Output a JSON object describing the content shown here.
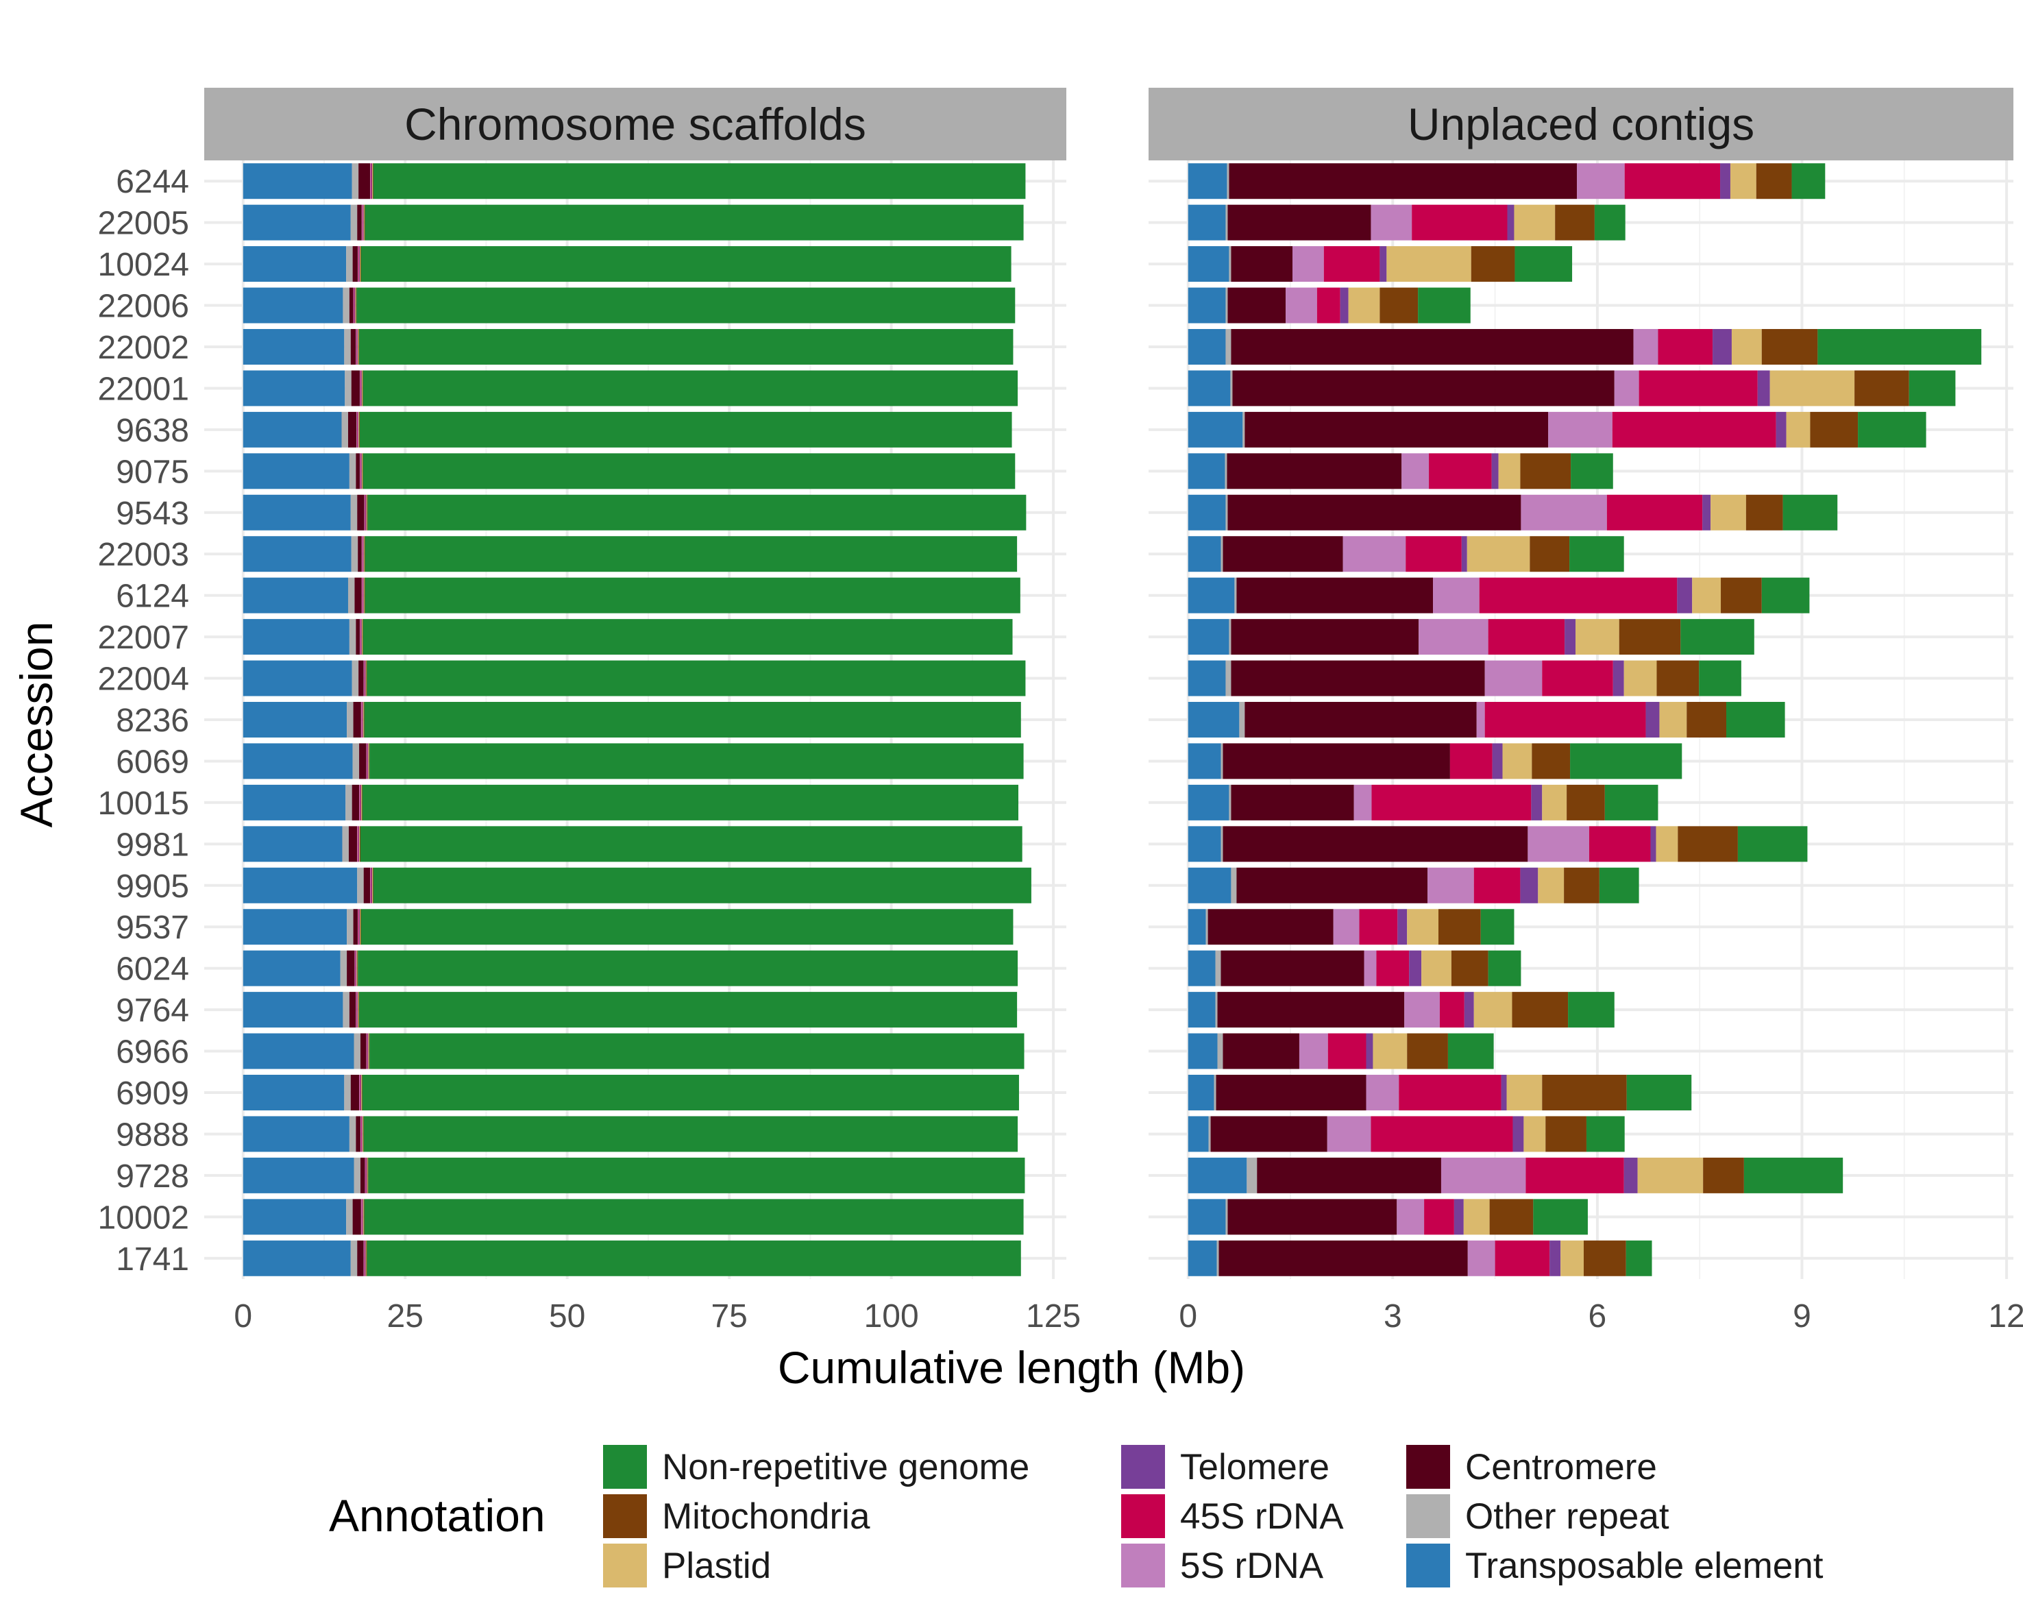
{
  "chart_data": {
    "type": "bar",
    "orientation": "horizontal",
    "stacked": true,
    "ylabel": "Accession",
    "xlabel": "Cumulative length (Mb)",
    "legend": {
      "title": "Annotation",
      "placement": "bottom",
      "columns": [
        [
          "Non-repetitive genome",
          "Mitochondria",
          "Plastid"
        ],
        [
          "Telomere",
          "45S rDNA",
          "5S rDNA"
        ],
        [
          "Centromere",
          "Other repeat",
          "Transposable element"
        ]
      ]
    },
    "colors": {
      "Transposable element": "#2c7bb6",
      "Other repeat": "#b0b0b0",
      "Centromere": "#560019",
      "5S rDNA": "#c07fbd",
      "45S rDNA": "#c6004d",
      "Telomere": "#773f98",
      "Plastid": "#dab96d",
      "Mitochondria": "#7b3f0a",
      "Non-repetitive genome": "#1e8a35"
    },
    "stack_order": [
      "Transposable element",
      "Other repeat",
      "Centromere",
      "5S rDNA",
      "45S rDNA",
      "Telomere",
      "Plastid",
      "Mitochondria",
      "Non-repetitive genome"
    ],
    "categories": [
      "6244",
      "22005",
      "10024",
      "22006",
      "22002",
      "22001",
      "9638",
      "9075",
      "9543",
      "22003",
      "6124",
      "22007",
      "22004",
      "8236",
      "6069",
      "10015",
      "9981",
      "9905",
      "9537",
      "6024",
      "9764",
      "6966",
      "6909",
      "9888",
      "9728",
      "10002",
      "1741"
    ],
    "panels": [
      {
        "title": "Chromosome scaffolds",
        "xlim": [
          -6,
          127
        ],
        "xticks": [
          "0",
          "25",
          "50",
          "75",
          "100",
          "125"
        ],
        "xtick_values": [
          0,
          25,
          50,
          75,
          100,
          125
        ],
        "segments": [
          [
            16.8,
            1.0,
            1.8,
            0.1,
            0.1,
            0.1,
            0.1,
            0.1,
            100.6
          ],
          [
            16.6,
            1.0,
            0.7,
            0.1,
            0.1,
            0.1,
            0.1,
            0.1,
            101.6
          ],
          [
            15.9,
            1.0,
            0.8,
            0.1,
            0.1,
            0.1,
            0.1,
            0.1,
            100.3
          ],
          [
            15.4,
            1.0,
            0.6,
            0.1,
            0.1,
            0.1,
            0.1,
            0.1,
            101.6
          ],
          [
            15.6,
            1.0,
            0.8,
            0.1,
            0.1,
            0.1,
            0.1,
            0.1,
            100.9
          ],
          [
            15.7,
            1.0,
            1.3,
            0.1,
            0.1,
            0.1,
            0.1,
            0.1,
            101.0
          ],
          [
            15.2,
            1.0,
            1.3,
            0.1,
            0.1,
            0.1,
            0.1,
            0.1,
            100.6
          ],
          [
            16.4,
            1.0,
            0.6,
            0.1,
            0.1,
            0.1,
            0.1,
            0.1,
            100.6
          ],
          [
            16.6,
            1.0,
            1.1,
            0.1,
            0.1,
            0.1,
            0.1,
            0.1,
            101.6
          ],
          [
            16.7,
            1.0,
            0.6,
            0.1,
            0.1,
            0.1,
            0.1,
            0.1,
            100.6
          ],
          [
            16.2,
            1.0,
            1.1,
            0.1,
            0.1,
            0.1,
            0.1,
            0.1,
            101.1
          ],
          [
            16.4,
            1.0,
            0.6,
            0.1,
            0.1,
            0.1,
            0.1,
            0.1,
            100.2
          ],
          [
            16.8,
            1.0,
            0.8,
            0.1,
            0.1,
            0.1,
            0.1,
            0.1,
            101.6
          ],
          [
            16.0,
            1.0,
            1.2,
            0.1,
            0.1,
            0.1,
            0.1,
            0.1,
            101.3
          ],
          [
            16.9,
            1.0,
            1.1,
            0.1,
            0.1,
            0.1,
            0.1,
            0.1,
            100.9
          ],
          [
            15.8,
            1.0,
            1.1,
            0.1,
            0.1,
            0.1,
            0.1,
            0.1,
            101.2
          ],
          [
            15.3,
            1.0,
            1.3,
            0.1,
            0.1,
            0.1,
            0.1,
            0.1,
            102.1
          ],
          [
            17.6,
            1.0,
            1.0,
            0.1,
            0.1,
            0.1,
            0.1,
            0.1,
            101.5
          ],
          [
            16.0,
            1.0,
            0.7,
            0.1,
            0.1,
            0.1,
            0.1,
            0.1,
            100.6
          ],
          [
            15.0,
            1.0,
            1.2,
            0.1,
            0.1,
            0.1,
            0.1,
            0.1,
            101.8
          ],
          [
            15.4,
            1.0,
            1.0,
            0.1,
            0.1,
            0.1,
            0.1,
            0.1,
            101.5
          ],
          [
            17.1,
            1.0,
            0.9,
            0.1,
            0.1,
            0.1,
            0.1,
            0.1,
            101.0
          ],
          [
            15.6,
            1.0,
            1.3,
            0.1,
            0.1,
            0.1,
            0.1,
            0.1,
            101.3
          ],
          [
            16.4,
            1.0,
            0.7,
            0.1,
            0.1,
            0.1,
            0.1,
            0.1,
            100.9
          ],
          [
            17.1,
            1.0,
            0.7,
            0.1,
            0.1,
            0.1,
            0.1,
            0.1,
            101.3
          ],
          [
            15.9,
            1.0,
            1.3,
            0.1,
            0.1,
            0.1,
            0.1,
            0.1,
            101.7
          ],
          [
            16.6,
            1.0,
            1.0,
            0.1,
            0.1,
            0.1,
            0.1,
            0.1,
            100.9
          ]
        ]
      },
      {
        "title": "Unplaced contigs",
        "xlim": [
          -0.58,
          12.1
        ],
        "xticks": [
          "0",
          "3",
          "6",
          "9",
          "12"
        ],
        "xtick_values": [
          0,
          3,
          6,
          9,
          12
        ],
        "segments": [
          [
            0.57,
            0.03,
            5.1,
            0.7,
            1.4,
            0.15,
            0.38,
            0.52,
            0.49
          ],
          [
            0.55,
            0.03,
            2.1,
            0.6,
            1.4,
            0.1,
            0.6,
            0.58,
            0.45
          ],
          [
            0.6,
            0.03,
            0.9,
            0.46,
            0.82,
            0.1,
            1.24,
            0.64,
            0.84
          ],
          [
            0.55,
            0.03,
            0.85,
            0.46,
            0.34,
            0.12,
            0.46,
            0.56,
            0.77
          ],
          [
            0.55,
            0.08,
            5.9,
            0.36,
            0.8,
            0.28,
            0.44,
            0.82,
            2.4
          ],
          [
            0.62,
            0.03,
            5.6,
            0.36,
            1.74,
            0.18,
            1.24,
            0.8,
            0.68
          ],
          [
            0.8,
            0.03,
            4.45,
            0.94,
            2.4,
            0.15,
            0.35,
            0.7,
            1.0
          ],
          [
            0.54,
            0.03,
            2.56,
            0.4,
            0.92,
            0.1,
            0.32,
            0.74,
            0.62
          ],
          [
            0.55,
            0.03,
            4.3,
            1.26,
            1.4,
            0.12,
            0.52,
            0.54,
            0.8
          ],
          [
            0.48,
            0.03,
            1.76,
            0.92,
            0.82,
            0.08,
            0.92,
            0.58,
            0.8
          ],
          [
            0.68,
            0.03,
            2.88,
            0.68,
            2.9,
            0.22,
            0.42,
            0.6,
            0.7
          ],
          [
            0.6,
            0.03,
            2.75,
            1.02,
            1.12,
            0.16,
            0.64,
            0.9,
            1.08
          ],
          [
            0.55,
            0.08,
            3.72,
            0.84,
            1.04,
            0.16,
            0.48,
            0.62,
            0.62
          ],
          [
            0.75,
            0.08,
            3.4,
            0.12,
            2.36,
            0.2,
            0.4,
            0.58,
            0.86
          ],
          [
            0.48,
            0.03,
            3.33,
            0.0,
            0.62,
            0.15,
            0.43,
            0.56,
            1.64
          ],
          [
            0.6,
            0.03,
            1.8,
            0.26,
            2.34,
            0.16,
            0.36,
            0.56,
            0.78
          ],
          [
            0.48,
            0.03,
            4.47,
            0.9,
            0.9,
            0.08,
            0.32,
            0.88,
            1.02
          ],
          [
            0.63,
            0.08,
            2.8,
            0.68,
            0.68,
            0.26,
            0.38,
            0.52,
            0.58
          ],
          [
            0.26,
            0.03,
            1.84,
            0.38,
            0.56,
            0.14,
            0.46,
            0.62,
            0.49
          ],
          [
            0.4,
            0.08,
            2.1,
            0.18,
            0.48,
            0.18,
            0.44,
            0.54,
            0.48
          ],
          [
            0.4,
            0.03,
            2.74,
            0.52,
            0.36,
            0.14,
            0.56,
            0.82,
            0.68
          ],
          [
            0.43,
            0.08,
            1.12,
            0.42,
            0.56,
            0.1,
            0.5,
            0.6,
            0.67
          ],
          [
            0.38,
            0.03,
            2.2,
            0.48,
            1.5,
            0.08,
            0.52,
            1.24,
            0.95
          ],
          [
            0.3,
            0.03,
            1.71,
            0.64,
            2.08,
            0.16,
            0.32,
            0.6,
            0.56
          ],
          [
            0.86,
            0.15,
            2.7,
            1.24,
            1.44,
            0.2,
            0.96,
            0.6,
            1.45
          ],
          [
            0.55,
            0.03,
            2.48,
            0.4,
            0.44,
            0.14,
            0.38,
            0.64,
            0.8
          ],
          [
            0.42,
            0.03,
            3.65,
            0.4,
            0.8,
            0.16,
            0.34,
            0.62,
            0.38
          ]
        ]
      }
    ]
  }
}
